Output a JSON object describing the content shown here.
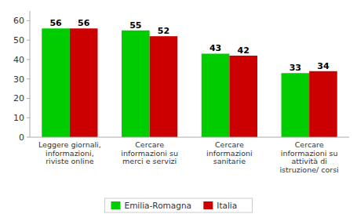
{
  "chart_data": {
    "type": "bar",
    "categories": [
      "Leggere giornali,\ninformazioni,\nriviste online",
      "Cercare\ninformazioni su\nmerci e servizi",
      "Cercare\ninformazioni\nsanitarie",
      "Cercare\ninformazioni su\nattività di\nistruzione/ corsi"
    ],
    "series": [
      {
        "name": "Emilia-Romagna",
        "color": "#00CC00",
        "values": [
          56,
          55,
          43,
          33
        ]
      },
      {
        "name": "Italia",
        "color": "#CC0000",
        "values": [
          56,
          52,
          42,
          34
        ]
      }
    ],
    "ylim": [
      0,
      65
    ],
    "yticks": [
      0,
      10,
      20,
      30,
      40,
      50,
      60
    ],
    "grid": false,
    "data_labels": true,
    "legend": "bottom"
  }
}
